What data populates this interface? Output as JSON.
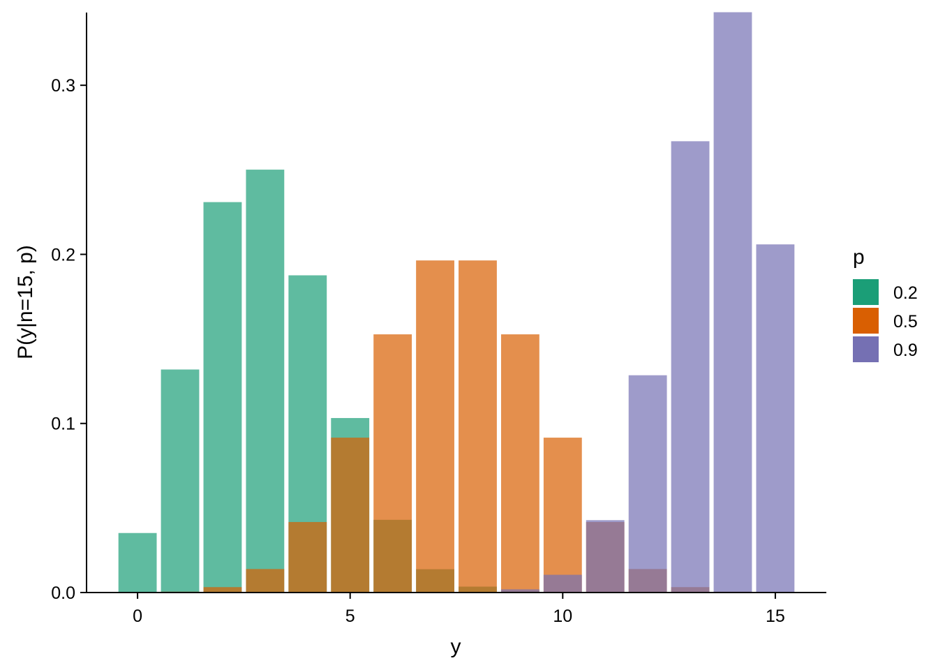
{
  "chart_data": {
    "type": "bar",
    "position": "identity-overlay",
    "x": [
      0,
      1,
      2,
      3,
      4,
      5,
      6,
      7,
      8,
      9,
      10,
      11,
      12,
      13,
      14,
      15
    ],
    "xlabel": "y",
    "ylabel": "P(y|n=15, p)",
    "xlim": [
      -1.2,
      16.2
    ],
    "ylim": [
      0,
      0.343
    ],
    "xticks": [
      0,
      5,
      10,
      15
    ],
    "yticks": [
      0.0,
      0.1,
      0.2,
      0.3
    ],
    "ytick_labels": [
      "0.0",
      "0.1",
      "0.2",
      "0.3"
    ],
    "grid": false,
    "legend": {
      "title": "p",
      "placement": "right"
    },
    "bar_opacity": 0.7,
    "series": [
      {
        "name": "0.2",
        "color": "#1B9E77",
        "values": [
          0.0352,
          0.1319,
          0.2309,
          0.2501,
          0.1876,
          0.1032,
          0.043,
          0.0138,
          0.0035,
          0.0007,
          0.0001,
          0.0,
          0.0,
          0.0,
          0.0,
          0.0
        ]
      },
      {
        "name": "0.5",
        "color": "#D95F02",
        "values": [
          3e-05,
          0.0005,
          0.0032,
          0.0139,
          0.0417,
          0.0916,
          0.1527,
          0.1964,
          0.1964,
          0.1527,
          0.0916,
          0.0417,
          0.0139,
          0.0032,
          0.0005,
          3e-05
        ]
      },
      {
        "name": "0.9",
        "color": "#7570B3",
        "values": [
          0.0,
          0.0,
          0.0,
          0.0,
          0.0,
          0.0,
          0.0,
          0.0,
          0.0,
          0.0019,
          0.0105,
          0.0428,
          0.1285,
          0.2669,
          0.3432,
          0.2059
        ]
      }
    ]
  }
}
